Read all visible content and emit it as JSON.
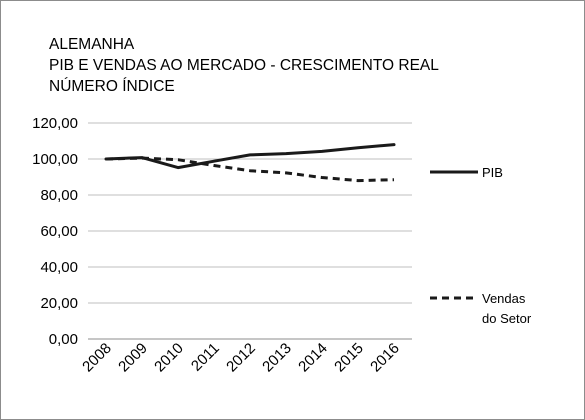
{
  "chart_data": {
    "type": "line",
    "title": "ALEMANHA",
    "subtitle_lines": [
      "PIB E VENDAS AO MERCADO - CRESCIMENTO REAL",
      "NÚMERO ÍNDICE"
    ],
    "categories": [
      "2008",
      "2009",
      "2010",
      "2011",
      "2012",
      "2013",
      "2014",
      "2015",
      "2016"
    ],
    "ylim": [
      0,
      120
    ],
    "yticks": [
      "0,00",
      "20,00",
      "40,00",
      "60,00",
      "80,00",
      "100,00",
      "120,00"
    ],
    "grid": true,
    "legend_position": "right",
    "series": [
      {
        "name": "PIB",
        "style": "solid",
        "color": "#1a1a1a",
        "values": [
          100.0,
          100.8,
          95.2,
          98.8,
          102.3,
          103.0,
          104.2,
          106.3,
          108.0
        ]
      },
      {
        "name_lines": [
          "Vendas",
          "do Setor"
        ],
        "style": "dashed",
        "color": "#1a1a1a",
        "values": [
          100.0,
          100.5,
          99.6,
          96.4,
          93.5,
          92.3,
          89.7,
          88.0,
          88.5
        ]
      }
    ]
  }
}
